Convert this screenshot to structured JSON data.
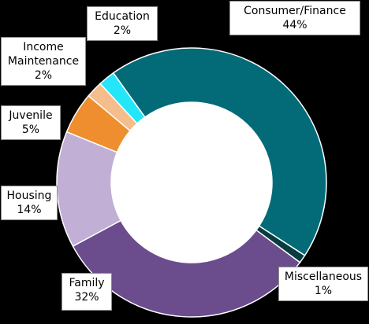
{
  "chart_data": {
    "type": "pie",
    "variant": "donut",
    "title": "",
    "legend": "none",
    "slices": [
      {
        "label": "Consumer/Finance",
        "value": 44,
        "value_label": "44%",
        "color": "#036b78"
      },
      {
        "label": "Miscellaneous",
        "value": 1,
        "value_label": "1%",
        "color": "#083c40"
      },
      {
        "label": "Family",
        "value": 32,
        "value_label": "32%",
        "color": "#6b4c8c"
      },
      {
        "label": "Housing",
        "value": 14,
        "value_label": "14%",
        "color": "#c1afd6"
      },
      {
        "label": "Juvenile",
        "value": 5,
        "value_label": "5%",
        "color": "#ef8e2e"
      },
      {
        "label": "Income Maintenance",
        "value": 2,
        "value_label": "2%",
        "color": "#f5bd8b"
      },
      {
        "label": "Education",
        "value": 2,
        "value_label": "2%",
        "color": "#24e6f8"
      }
    ]
  },
  "labels": {
    "consumer": {
      "name": "Consumer/Finance",
      "pct": "44%"
    },
    "misc": {
      "name": "Miscellaneous",
      "pct": "1%"
    },
    "family": {
      "name": "Family",
      "pct": "32%"
    },
    "housing": {
      "name": "Housing",
      "pct": "14%"
    },
    "juvenile": {
      "name": "Juvenile",
      "pct": "5%"
    },
    "income_line1": "Income",
    "income_line2": "Maintenance",
    "income_pct": "2%",
    "education": {
      "name": "Education",
      "pct": "2%"
    }
  }
}
